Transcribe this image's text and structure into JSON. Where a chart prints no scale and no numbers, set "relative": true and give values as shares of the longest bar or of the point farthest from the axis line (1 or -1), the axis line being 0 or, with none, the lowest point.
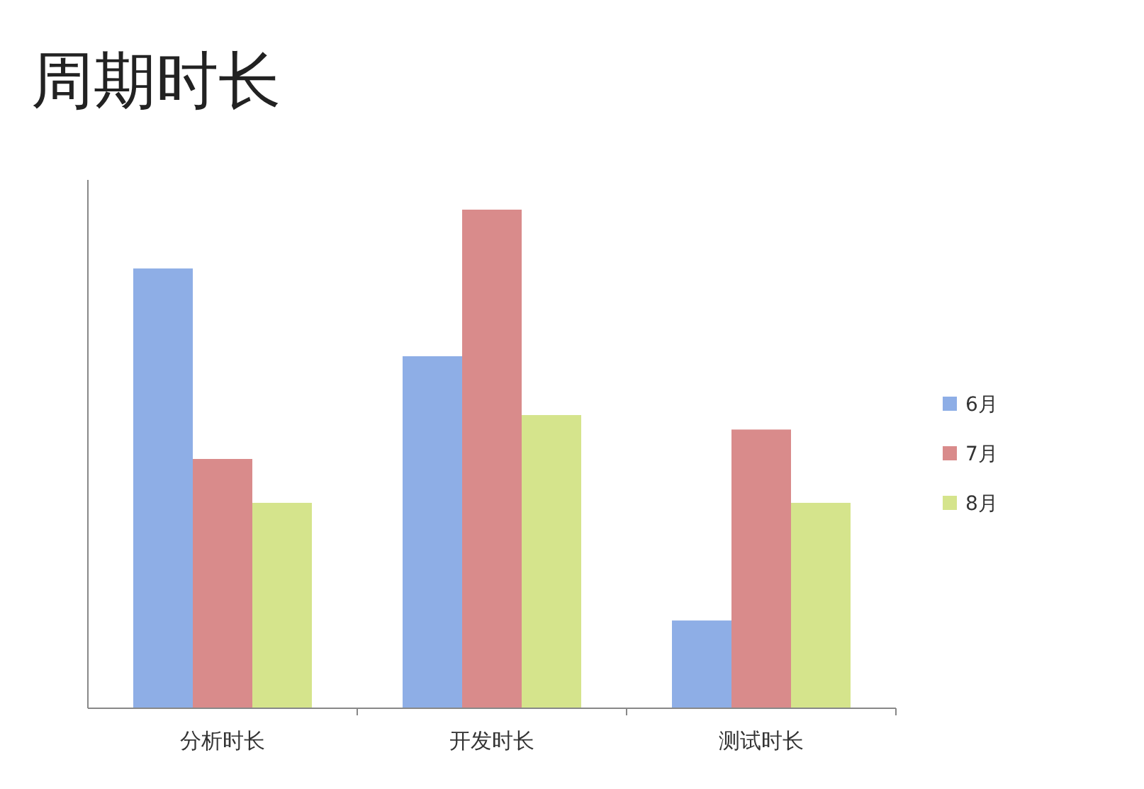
{
  "chart_data": {
    "type": "bar",
    "title": "周期时长",
    "relative": true,
    "categories": [
      "分析时长",
      "开发时长",
      "测试时长"
    ],
    "legend": "right",
    "series": [
      {
        "name": "6月",
        "color": "#8eaee6",
        "values": [
          0.882,
          0.706,
          0.176
        ]
      },
      {
        "name": "7月",
        "color": "#d98b8b",
        "values": [
          0.5,
          1.0,
          0.559
        ]
      },
      {
        "name": "8月",
        "color": "#d5e48c",
        "values": [
          0.412,
          0.588,
          0.412
        ]
      }
    ]
  }
}
